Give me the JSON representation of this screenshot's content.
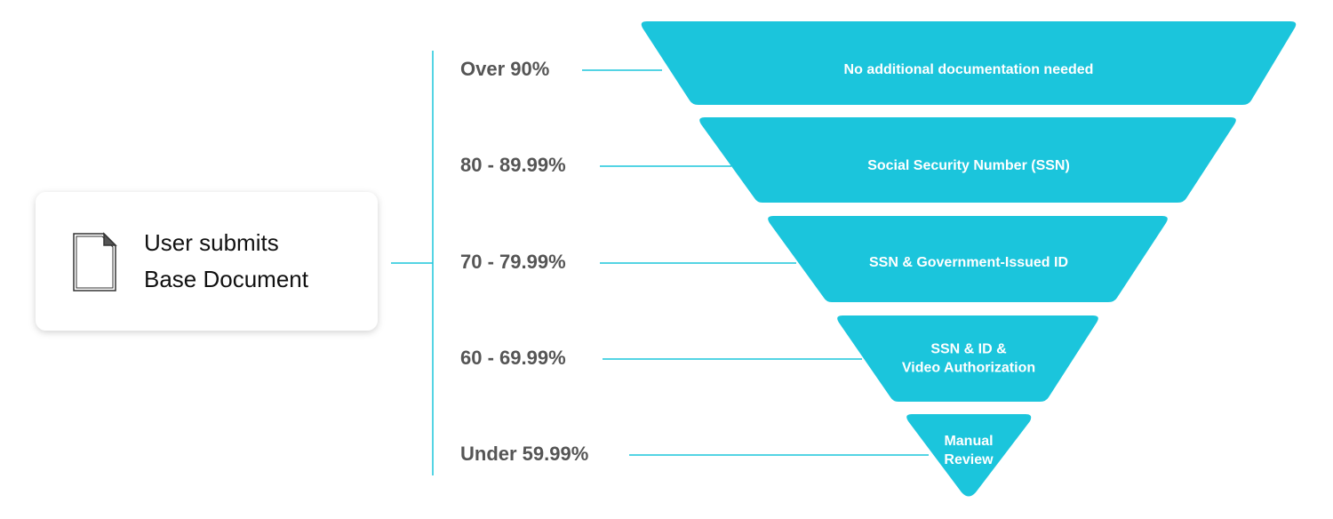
{
  "submission": {
    "lines": [
      "User submits",
      "Base Document"
    ]
  },
  "levels": [
    {
      "range": "Over 90%",
      "requirement": [
        "No additional documentation needed"
      ]
    },
    {
      "range": "80 - 89.99%",
      "requirement": [
        "Social Security Number (SSN)"
      ]
    },
    {
      "range": "70 - 79.99%",
      "requirement": [
        "SSN & Government-Issued ID"
      ]
    },
    {
      "range": "60 - 69.99%",
      "requirement": [
        "SSN & ID &",
        "Video Authorization"
      ]
    },
    {
      "range": "Under 59.99%",
      "requirement": [
        "Manual",
        "Review"
      ]
    }
  ]
}
